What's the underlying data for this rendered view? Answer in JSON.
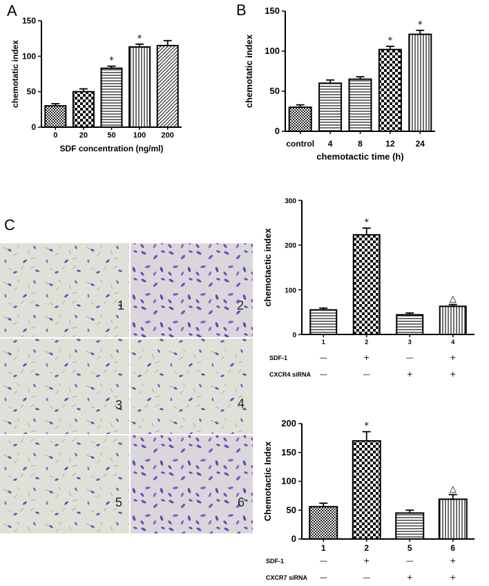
{
  "panels": {
    "A": "A",
    "B": "B",
    "C": "C"
  },
  "micrographs": {
    "labels": [
      "1",
      "2",
      "3",
      "4",
      "5",
      "6"
    ]
  },
  "chart_data": [
    {
      "id": "A",
      "type": "bar",
      "title": "",
      "xlabel": "SDF concentration (ng/ml)",
      "ylabel": "chemotatic index",
      "categories": [
        "0",
        "20",
        "50",
        "100",
        "200"
      ],
      "values": [
        30,
        50,
        83,
        113,
        115
      ],
      "errors": [
        3,
        4,
        3,
        4,
        7
      ],
      "significance": [
        "",
        "",
        "*",
        "*",
        ""
      ],
      "ylim": [
        0,
        150
      ],
      "yticks": [
        0,
        50,
        100,
        150
      ],
      "patterns": [
        "dots",
        "check",
        "hlines",
        "vlines",
        "diag"
      ]
    },
    {
      "id": "B",
      "type": "bar",
      "title": "",
      "xlabel": "chemotactic time (h)",
      "ylabel": "chemotatic index",
      "categories": [
        "control",
        "4",
        "8",
        "12",
        "24"
      ],
      "values": [
        30,
        60,
        65,
        102,
        121
      ],
      "errors": [
        3,
        4,
        3,
        4,
        5
      ],
      "significance": [
        "",
        "",
        "",
        "*",
        "*"
      ],
      "ylim": [
        0,
        150
      ],
      "yticks": [
        0,
        50,
        100,
        150
      ],
      "patterns": [
        "dots",
        "hlines",
        "hlines",
        "check",
        "vlines"
      ]
    },
    {
      "id": "C1",
      "type": "bar",
      "title": "",
      "xlabel": "",
      "ylabel": "chemotactic index",
      "categories": [
        "1",
        "2",
        "3",
        "4"
      ],
      "values": [
        55,
        223,
        44,
        63
      ],
      "errors": [
        4,
        15,
        4,
        4
      ],
      "significance": [
        "",
        "*",
        "",
        "△"
      ],
      "ylim": [
        0,
        300
      ],
      "yticks": [
        0,
        100,
        200,
        300
      ],
      "patterns": [
        "hlines",
        "check",
        "hlines",
        "vlines"
      ],
      "conditions": [
        {
          "name": "SDF-1",
          "values": [
            "—",
            "+",
            "—",
            "+"
          ]
        },
        {
          "name": "CXCR4 siRNA",
          "values": [
            "—",
            "—",
            "+",
            "+"
          ]
        }
      ]
    },
    {
      "id": "C2",
      "type": "bar",
      "title": "",
      "xlabel": "",
      "ylabel": "Chemotactic Index",
      "categories": [
        "1",
        "2",
        "5",
        "6"
      ],
      "values": [
        56,
        170,
        45,
        69
      ],
      "errors": [
        6,
        16,
        5,
        8
      ],
      "significance": [
        "",
        "*",
        "",
        "△"
      ],
      "ylim": [
        0,
        200
      ],
      "yticks": [
        0,
        50,
        100,
        150,
        200
      ],
      "patterns": [
        "dots",
        "check",
        "hlines",
        "vlines"
      ],
      "conditions": [
        {
          "name": "SDF-1",
          "values": [
            "—",
            "+",
            "—",
            "+"
          ]
        },
        {
          "name": "CXCR7 siRNA",
          "values": [
            "—",
            "—",
            "+",
            "+"
          ]
        }
      ]
    }
  ]
}
